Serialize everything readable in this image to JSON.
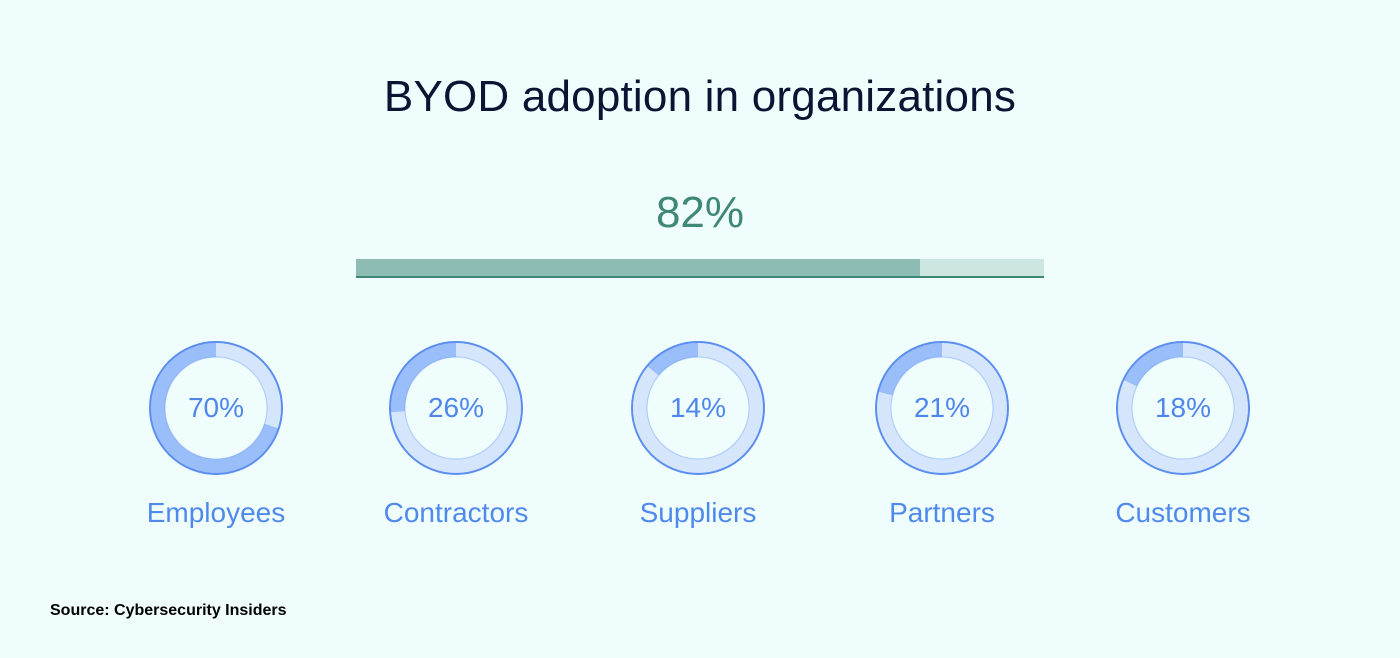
{
  "title": "BYOD adoption in organizations",
  "source": "Source: Cybersecurity Insiders",
  "colors": {
    "background": "#effefd",
    "title": "#0c1433",
    "overall_text": "#3f8777",
    "bar_fill": "#8cbcb3",
    "bar_track": "#cde6e1",
    "ring_outline": "#5c8ef0",
    "ring_filled": "#99befa",
    "ring_empty": "#d5e6fc",
    "ring_text": "#4f86ea"
  },
  "chart_data": [
    {
      "type": "bar",
      "title": "",
      "values": [
        82
      ],
      "value_labels": [
        "82%"
      ],
      "ylim": [
        0,
        100
      ]
    },
    {
      "type": "pie",
      "categories": [
        "Employees",
        "Contractors",
        "Suppliers",
        "Partners",
        "Customers"
      ],
      "values": [
        70,
        26,
        14,
        21,
        18
      ],
      "value_labels": [
        "70%",
        "26%",
        "14%",
        "21%",
        "18%"
      ]
    }
  ]
}
